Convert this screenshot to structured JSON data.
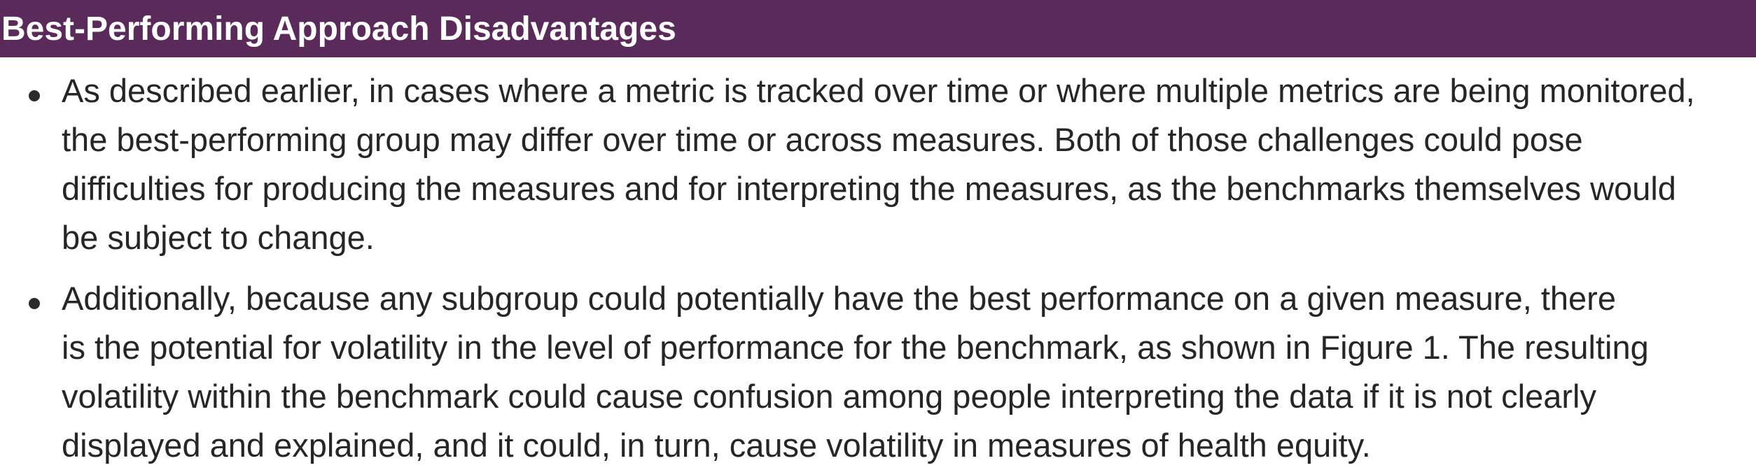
{
  "header": {
    "title": "Best-Performing Approach Disadvantages"
  },
  "colors": {
    "header_background": "#5a2a5b",
    "header_text": "#ffffff",
    "body_text": "#262626"
  },
  "bullets": [
    {
      "lines": [
        "As described earlier, in cases where a metric is tracked over time or where multiple metrics are being monitored,",
        "the best-performing group may differ over time or across measures. Both of those challenges could pose",
        "difficulties for producing the measures and for interpreting the measures, as the benchmarks themselves would",
        "be subject to change."
      ]
    },
    {
      "lines": [
        "Additionally, because any subgroup could potentially have the best performance on a given measure, there",
        "is the potential for volatility in the level of performance for the benchmark, as shown in Figure 1. The resulting",
        "volatility within the benchmark could cause confusion among people interpreting the data if it is not clearly",
        "displayed and explained, and it could, in turn, cause volatility in measures of health equity."
      ]
    }
  ]
}
